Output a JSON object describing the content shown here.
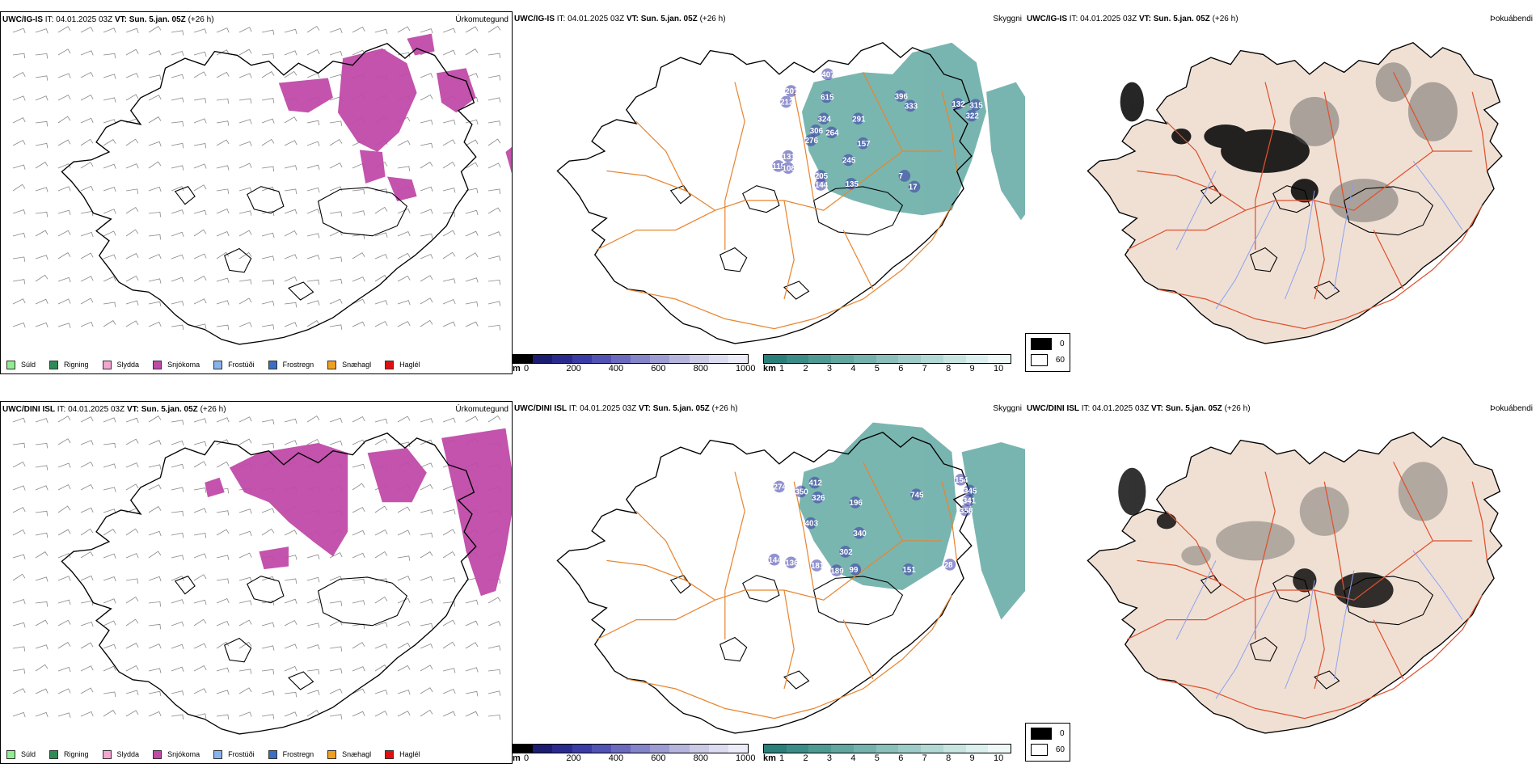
{
  "rows": [
    {
      "model": "UWC/IG-IS",
      "it_label": "IT:",
      "it_value": "04.01.2025 03Z",
      "vt_label": "VT:",
      "vt_value": "Sun. 5.jan. 05Z",
      "lead": "(+26 h)",
      "elevation_labels": [
        "407",
        "201",
        "212",
        "615",
        "396",
        "333",
        "132",
        "315",
        "322",
        "324",
        "291",
        "306",
        "264",
        "276",
        "157",
        "131",
        "245",
        "115",
        "108",
        "205",
        "144",
        "135",
        "7",
        "17"
      ],
      "precip_area_scale": "row1"
    },
    {
      "model": "UWC/DINI ISL",
      "it_label": "IT:",
      "it_value": "04.01.2025 03Z",
      "vt_label": "VT:",
      "vt_value": "Sun. 5.jan. 05Z",
      "lead": "(+26 h)",
      "elevation_labels": [
        "412",
        "274",
        "350",
        "326",
        "196",
        "745",
        "154",
        "345",
        "341",
        "358",
        "403",
        "340",
        "302",
        "136",
        "181",
        "189",
        "99",
        "151",
        "144",
        "28"
      ],
      "precip_area_scale": "row2"
    }
  ],
  "panel_titles": {
    "precip_type": "Úrkomutegund",
    "cloud": "Skyggni",
    "fog": "Þokuábendi"
  },
  "precip_legend": [
    {
      "label": "Súld",
      "color": "#90ee90"
    },
    {
      "label": "Rigning",
      "color": "#2e8b57"
    },
    {
      "label": "Slydda",
      "color": "#f5a6d0"
    },
    {
      "label": "Snjókoma",
      "color": "#c04aa8"
    },
    {
      "label": "Frostúði",
      "color": "#87b4ee"
    },
    {
      "label": "Frostregn",
      "color": "#3a6fc4"
    },
    {
      "label": "Snæhagl",
      "color": "#f0a020"
    },
    {
      "label": "Haglél",
      "color": "#e01010"
    }
  ],
  "elevation_bar": {
    "unit": "m",
    "ticks": [
      "0",
      "200",
      "400",
      "600",
      "800",
      "1000"
    ],
    "colors": [
      "#000000",
      "#1c1c70",
      "#2a2a8e",
      "#3b3ba6",
      "#5252b4",
      "#6a6abe",
      "#8484c8",
      "#9c9cd2",
      "#b4b4dc",
      "#cacae6",
      "#dcdcf0",
      "#ececf8"
    ]
  },
  "visibility_bar": {
    "unit": "km",
    "ticks": [
      "1",
      "2",
      "3",
      "4",
      "5",
      "6",
      "7",
      "8",
      "9",
      "10"
    ],
    "colors": [
      "#2a7f7a",
      "#3b8c86",
      "#4f9993",
      "#62a6a0",
      "#76b2ad",
      "#8abfba",
      "#9ecbc7",
      "#b2d8d4",
      "#c7e4e1",
      "#dbf0ee",
      "#eef8f7"
    ]
  },
  "fog_legend": [
    {
      "label": "0",
      "color": "#000000"
    },
    {
      "label": "60",
      "color": "#ffffff"
    }
  ],
  "colors": {
    "snow": "#c04aa8",
    "cloud": "#4d9d96",
    "road": "#e8852f",
    "fog_land": "#f0e0d4",
    "fog_road": "#e0502c",
    "river": "#8aa0f0",
    "elev": "#3838a8"
  }
}
